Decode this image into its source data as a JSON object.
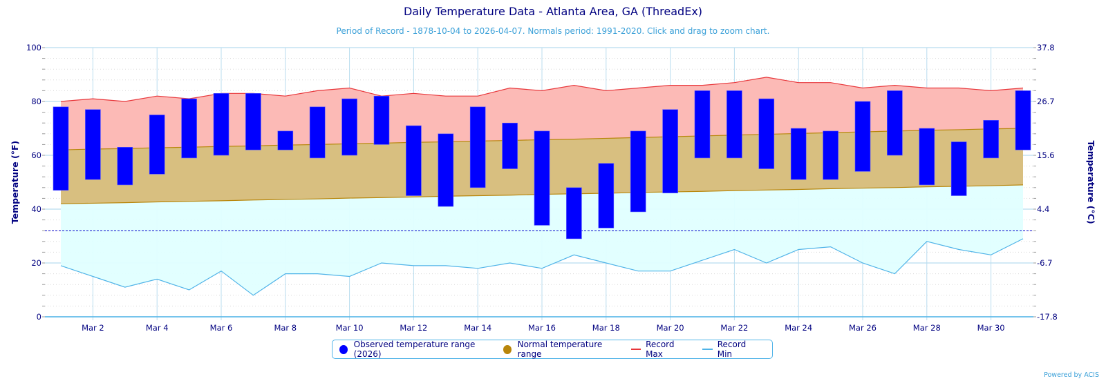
{
  "chart_data": {
    "type": "bar",
    "title": "Daily Temperature Data - Atlanta Area, GA (ThreadEx)",
    "subtitle": "Period of Record - 1878-10-04 to 2026-04-07. Normals period: 1991-2020. Click and drag to zoom chart.",
    "ylabel": "Temperature (°F)",
    "y2label": "Temperature (°C)",
    "ylim": [
      0,
      100
    ],
    "yticks": [
      "0",
      "20",
      "40",
      "60",
      "80",
      "100"
    ],
    "y2ticks": [
      "-17.8",
      "-6.7",
      "4.4",
      "15.6",
      "26.7",
      "37.8"
    ],
    "freezing_line": 32,
    "grid": true,
    "x": [
      1,
      2,
      3,
      4,
      5,
      6,
      7,
      8,
      9,
      10,
      11,
      12,
      13,
      14,
      15,
      16,
      17,
      18,
      19,
      20,
      21,
      22,
      23,
      24,
      25,
      26,
      27,
      28,
      29,
      30,
      31
    ],
    "xtick_labels": [
      "Mar 2",
      "Mar 4",
      "Mar 6",
      "Mar 8",
      "Mar 10",
      "Mar 12",
      "Mar 14",
      "Mar 16",
      "Mar 18",
      "Mar 20",
      "Mar 22",
      "Mar 24",
      "Mar 26",
      "Mar 28",
      "Mar 30"
    ],
    "series": [
      {
        "name": "Observed temperature range (2026)",
        "color": "#0000ff",
        "high": [
          78,
          77,
          63,
          75,
          81,
          83,
          83,
          69,
          78,
          81,
          82,
          71,
          68,
          78,
          72,
          69,
          48,
          57,
          69,
          77,
          84,
          84,
          81,
          70,
          69,
          80,
          84,
          70,
          65,
          73,
          84
        ],
        "low": [
          47,
          51,
          49,
          53,
          59,
          60,
          62,
          62,
          59,
          60,
          64,
          45,
          41,
          48,
          55,
          34,
          29,
          33,
          39,
          46,
          59,
          59,
          55,
          51,
          51,
          54,
          60,
          49,
          45,
          59,
          62
        ]
      },
      {
        "name": "Normal temperature range",
        "color": "#b8860b",
        "high": [
          62,
          62.3,
          62.5,
          62.8,
          63,
          63.3,
          63.5,
          63.8,
          64,
          64.3,
          64.5,
          64.8,
          65,
          65.3,
          65.5,
          65.8,
          66,
          66.3,
          66.6,
          66.9,
          67.2,
          67.5,
          67.8,
          68.1,
          68.4,
          68.7,
          69,
          69.3,
          69.5,
          69.8,
          70
        ],
        "low": [
          42,
          42.2,
          42.4,
          42.7,
          42.9,
          43.1,
          43.4,
          43.6,
          43.8,
          44.1,
          44.3,
          44.5,
          44.8,
          45,
          45.2,
          45.5,
          45.7,
          45.9,
          46.2,
          46.4,
          46.6,
          46.9,
          47.1,
          47.3,
          47.6,
          47.8,
          48,
          48.3,
          48.5,
          48.7,
          49
        ]
      },
      {
        "name": "Record Max",
        "color": "#e8363a",
        "values": [
          80,
          81,
          80,
          82,
          81,
          83,
          83,
          82,
          84,
          85,
          82,
          83,
          82,
          82,
          85,
          84,
          86,
          84,
          85,
          86,
          86,
          87,
          89,
          87,
          87,
          85,
          86,
          85,
          85,
          84,
          85
        ]
      },
      {
        "name": "Record Min",
        "color": "#4fb3e8",
        "values": [
          19,
          15,
          11,
          14,
          10,
          17,
          8,
          16,
          16,
          15,
          20,
          19,
          19,
          18,
          20,
          18,
          23,
          20,
          17,
          17,
          21,
          25,
          20,
          25,
          26,
          20,
          16,
          28,
          25,
          23,
          29
        ]
      }
    ],
    "legend": "bottom-center"
  },
  "credit": "Powered by ACIS"
}
